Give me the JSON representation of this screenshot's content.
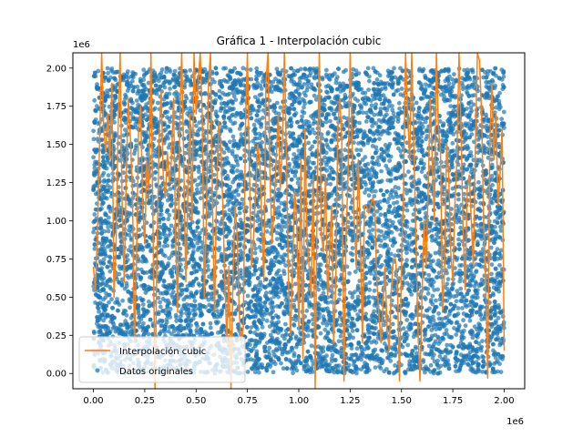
{
  "chart_data": {
    "type": "scatter",
    "title": "Gráfica 1 - Interpolación cubic",
    "xlabel": "",
    "ylabel": "",
    "x_offset_label": "1e6",
    "y_offset_label": "1e6",
    "xlim": [
      -0.1,
      2.1
    ],
    "ylim": [
      -0.1,
      2.1
    ],
    "x_ticks": [
      0.0,
      0.25,
      0.5,
      0.75,
      1.0,
      1.25,
      1.5,
      1.75,
      2.0
    ],
    "x_tick_labels": [
      "0.00",
      "0.25",
      "0.50",
      "0.75",
      "1.00",
      "1.25",
      "1.50",
      "1.75",
      "2.00"
    ],
    "y_ticks": [
      0.0,
      0.25,
      0.5,
      0.75,
      1.0,
      1.25,
      1.5,
      1.75,
      2.0
    ],
    "y_tick_labels": [
      "0.00",
      "0.25",
      "0.50",
      "0.75",
      "1.00",
      "1.25",
      "1.50",
      "1.75",
      "2.00"
    ],
    "grid": false,
    "legend_position": "lower-left",
    "series": [
      {
        "name": "Interpolación cubic",
        "kind": "line",
        "color": "#ff7f0e",
        "x": [
          0.0,
          0.01,
          0.02,
          0.03,
          0.04,
          0.05,
          0.06,
          0.07,
          0.08,
          0.09,
          0.1,
          0.11,
          0.12,
          0.13,
          0.14,
          0.15,
          0.16,
          0.17,
          0.18,
          0.19,
          0.2,
          0.21,
          0.22,
          0.23,
          0.24,
          0.25,
          0.26,
          0.27,
          0.28,
          0.29,
          0.3,
          0.31,
          0.32,
          0.33,
          0.34,
          0.35,
          0.36,
          0.37,
          0.38,
          0.39,
          0.4,
          0.41,
          0.42,
          0.43,
          0.44,
          0.45,
          0.46,
          0.47,
          0.48,
          0.49,
          0.5,
          0.51,
          0.52,
          0.53,
          0.54,
          0.55,
          0.56,
          0.57,
          0.58,
          0.59,
          0.6,
          0.61,
          0.62,
          0.63,
          0.64,
          0.65,
          0.66,
          0.67,
          0.68,
          0.69,
          0.7,
          0.71,
          0.72,
          0.73,
          0.74,
          0.75,
          0.76,
          0.77,
          0.78,
          0.79,
          0.8,
          0.81,
          0.82,
          0.83,
          0.84,
          0.85,
          0.86,
          0.87,
          0.88,
          0.89,
          0.9,
          0.91,
          0.92,
          0.93,
          0.94,
          0.95,
          0.96,
          0.97,
          0.98,
          0.99,
          1.0,
          1.01,
          1.02,
          1.03,
          1.04,
          1.05,
          1.06,
          1.07,
          1.08,
          1.09,
          1.1,
          1.11,
          1.12,
          1.13,
          1.14,
          1.15,
          1.16,
          1.17,
          1.18,
          1.19,
          1.2,
          1.21,
          1.22,
          1.23,
          1.24,
          1.25,
          1.26,
          1.27,
          1.28,
          1.29,
          1.3,
          1.31,
          1.32,
          1.33,
          1.34,
          1.35,
          1.36,
          1.37,
          1.38,
          1.39,
          1.4,
          1.41,
          1.42,
          1.43,
          1.44,
          1.45,
          1.46,
          1.47,
          1.48,
          1.49,
          1.5,
          1.51,
          1.52,
          1.53,
          1.54,
          1.55,
          1.56,
          1.57,
          1.58,
          1.59,
          1.6,
          1.61,
          1.62,
          1.63,
          1.64,
          1.65,
          1.66,
          1.67,
          1.68,
          1.69,
          1.7,
          1.71,
          1.72,
          1.73,
          1.74,
          1.75,
          1.76,
          1.77,
          1.78,
          1.79,
          1.8,
          1.81,
          1.82,
          1.83,
          1.84,
          1.85,
          1.86,
          1.87,
          1.88,
          1.89,
          1.9,
          1.91,
          1.92,
          1.93,
          1.94,
          1.95,
          1.96,
          1.97,
          1.98,
          1.99,
          2.0
        ],
        "y": [
          0.7,
          0.55,
          0.95,
          1.5,
          2.1,
          1.6,
          1.45,
          1.7,
          1.4,
          1.9,
          0.5,
          0.8,
          1.6,
          2.1,
          1.1,
          0.6,
          1.3,
          1.8,
          1.55,
          1.2,
          0.2,
          0.75,
          1.6,
          1.75,
          1.1,
          0.85,
          1.4,
          1.2,
          2.1,
          1.0,
          -0.1,
          0.8,
          1.55,
          1.85,
          1.3,
          1.15,
          1.45,
          1.25,
          1.4,
          1.8,
          0.9,
          0.4,
          1.6,
          2.1,
          1.4,
          0.6,
          1.2,
          1.7,
          1.0,
          2.1,
          1.7,
          1.9,
          2.1,
          1.7,
          0.5,
          1.0,
          1.9,
          2.1,
          1.1,
          0.4,
          1.2,
          1.65,
          1.5,
          1.1,
          0.6,
          0.2,
          0.7,
          -0.1,
          0.65,
          1.1,
          0.9,
          0.4,
          0.2,
          0.3,
          1.6,
          2.1,
          1.3,
          0.7,
          0.9,
          1.2,
          1.5,
          1.4,
          1.0,
          0.6,
          1.9,
          2.1,
          1.3,
          0.85,
          1.1,
          1.4,
          1.7,
          1.2,
          1.5,
          2.1,
          1.4,
          0.6,
          0.25,
          0.7,
          1.2,
          1.0,
          0.3,
          1.4,
          0.1,
          1.6,
          0.9,
          0.7,
          0.5,
          1.3,
          -0.1,
          1.2,
          2.1,
          0.9,
          0.8,
          1.3,
          0.5,
          0.8,
          1.1,
          0.2,
          0.6,
          1.6,
          1.8,
          1.5,
          -0.05,
          0.9,
          1.3,
          2.1,
          1.5,
          1.0,
          0.7,
          1.4,
          0.9,
          0.2,
          1.1,
          1.1,
          1.05,
          1.1,
          1.15,
          1.1,
          0.6,
          0.4,
          0.2,
          0.45,
          0.7,
          0.3,
          0.15,
          0.55,
          0.75,
          0.75,
          0.6,
          -0.05,
          0.7,
          1.2,
          2.1,
          1.7,
          1.4,
          2.1,
          1.5,
          0.9,
          0.3,
          -0.05,
          0.5,
          1.0,
          0.7,
          1.2,
          1.8,
          1.4,
          1.0,
          2.1,
          1.6,
          1.45,
          0.4,
          0.7,
          1.5,
          1.3,
          0.8,
          0.6,
          1.1,
          1.4,
          2.1,
          1.6,
          0.95,
          0.55,
          1.2,
          1.3,
          1.0,
          0.7,
          1.5,
          2.1,
          2.05,
          1.7,
          1.0,
          0.6,
          -0.03,
          1.5,
          1.9,
          1.4,
          1.7,
          1.1,
          1.3,
          1.6,
          0.15
        ]
      },
      {
        "name": "Datos originales",
        "kind": "scatter",
        "color": "#1f77b4",
        "distribution": "uniform",
        "count": 10000,
        "x_range": [
          0.0,
          2.0
        ],
        "y_range": [
          0.0,
          2.0
        ],
        "alpha": 0.7
      }
    ]
  }
}
